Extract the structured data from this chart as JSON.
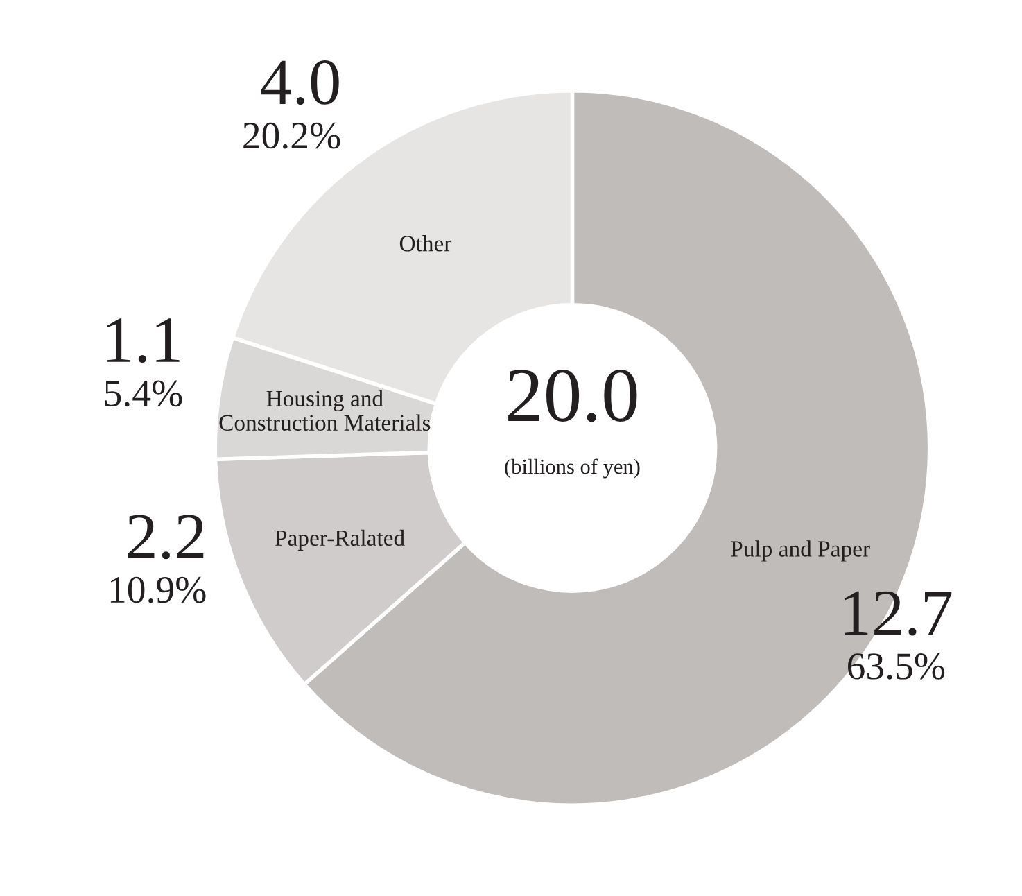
{
  "chart_data": {
    "type": "donut",
    "title": "20.0",
    "subtitle": "(billions of yen)",
    "categories": [
      "Pulp and Paper",
      "Paper-Ralated",
      "Housing and\nConstruction Materials",
      "Other"
    ],
    "values": [
      12.7,
      2.2,
      1.1,
      4.0
    ],
    "value_labels": [
      "12.7\n63.5%",
      "2.2\n10.9%",
      "1.1\n5.4%",
      "4.0\n20.2%"
    ],
    "colors": [
      "#c0bcb9",
      "#cfcccb",
      "#dad8d7",
      "#e6e5e4"
    ]
  }
}
